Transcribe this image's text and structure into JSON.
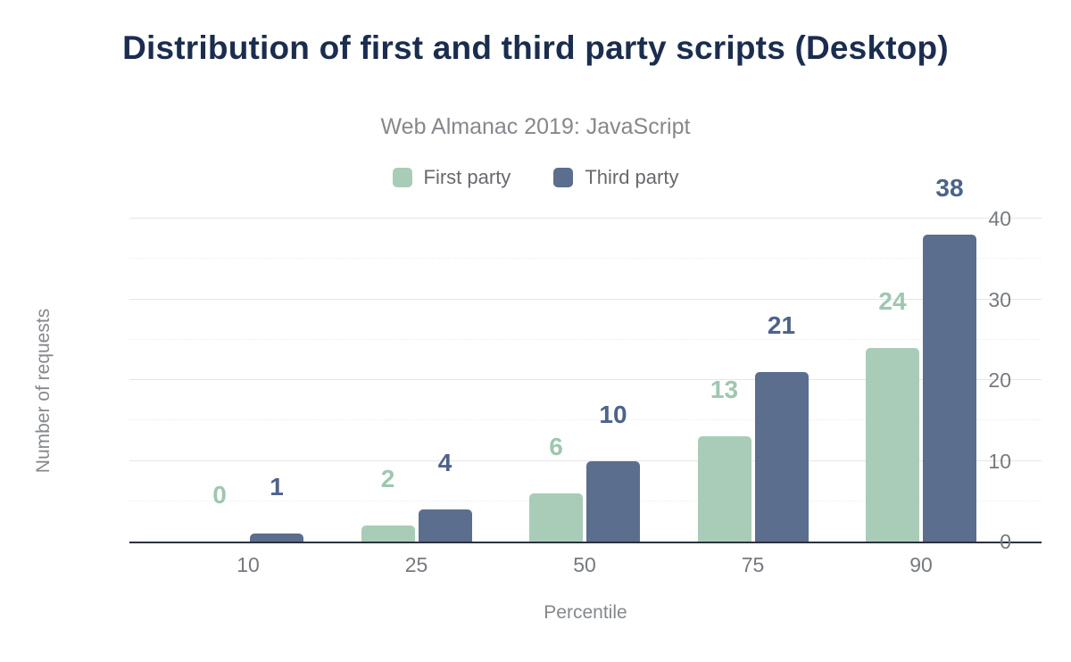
{
  "header": {
    "title": "Distribution of first and third party scripts (Desktop)",
    "subtitle": "Web Almanac 2019: JavaScript"
  },
  "colors": {
    "title_text": "#1b2d4f",
    "muted_text": "#85888c",
    "tick_text": "#76797f",
    "axis_line": "#2b313c",
    "major_gridline": "#e6e6e6",
    "minor_gridline": "#ededed",
    "first_party": "#a8ccb7",
    "third_party": "#5b6e8e"
  },
  "chart_data": {
    "type": "bar",
    "title": "Distribution of first and third party scripts (Desktop)",
    "subtitle": "Web Almanac 2019: JavaScript",
    "categories": [
      "10",
      "25",
      "50",
      "75",
      "90"
    ],
    "series": [
      {
        "name": "First party",
        "color": "#a8ccb7",
        "label_color": "#9ec7af",
        "values": [
          0,
          2,
          6,
          13,
          24
        ]
      },
      {
        "name": "Third party",
        "color": "#5b6e8e",
        "label_color": "#4c638b",
        "values": [
          1,
          4,
          10,
          21,
          38
        ]
      }
    ],
    "xlabel": "Percentile",
    "ylabel": "Number of requests",
    "ylim": [
      0,
      40
    ],
    "yticks": [
      0,
      10,
      20,
      30,
      40
    ],
    "minor_gridlines": [
      5,
      15,
      25,
      35
    ],
    "grid": true,
    "legend_position": "top",
    "data_labels": true
  }
}
